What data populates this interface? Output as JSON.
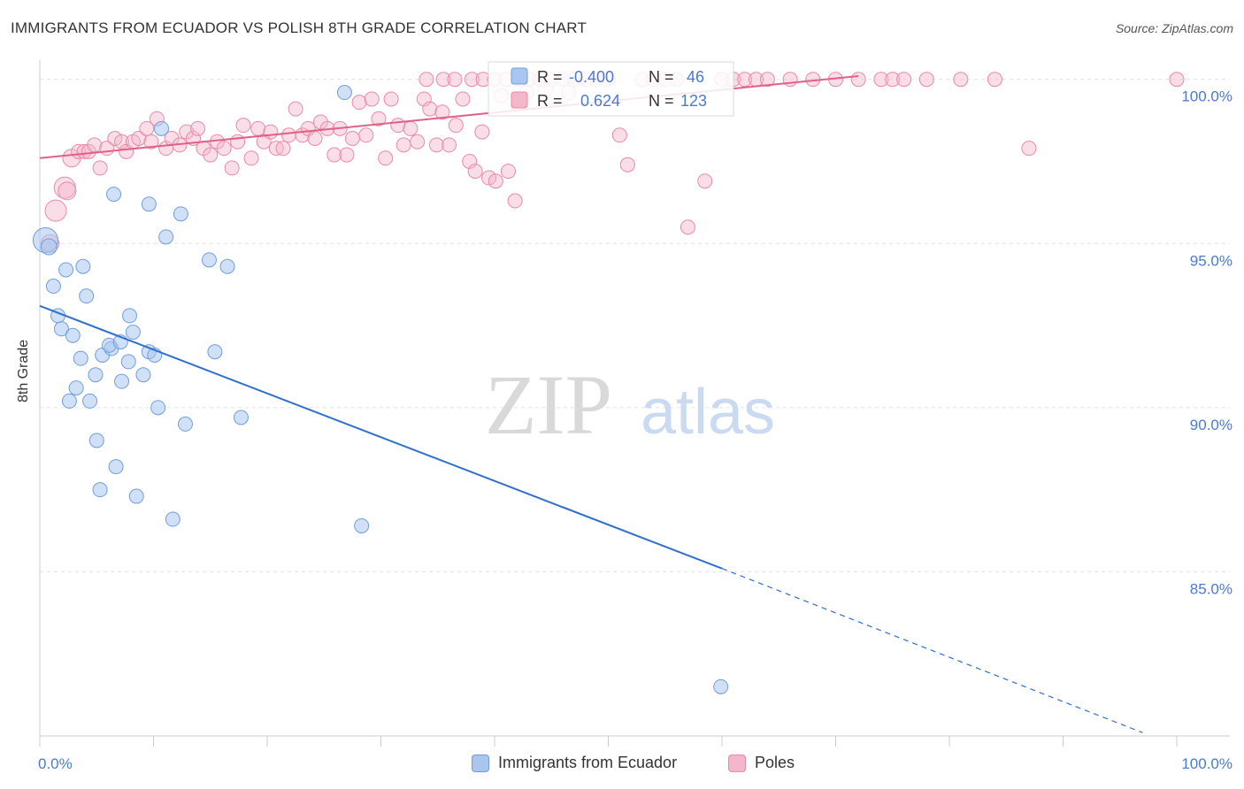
{
  "header": {
    "title": "IMMIGRANTS FROM ECUADOR VS POLISH 8TH GRADE CORRELATION CHART",
    "source": "Source: ZipAtlas.com"
  },
  "watermark": {
    "zip": "ZIP",
    "atlas": "atlas"
  },
  "colors": {
    "blue_fill": "#a9c6ef",
    "blue_stroke": "#6f9ee0",
    "blue_line": "#2f6fd0",
    "pink_fill": "#f4b6c9",
    "pink_stroke": "#e98aa8",
    "pink_line": "#e0608a",
    "tick_text": "#4a7bd0",
    "grid": "#e3e3e3"
  },
  "legend_box": {
    "rows": [
      {
        "r_label": "R =",
        "r_value": "-0.400",
        "n_label": "N =",
        "n_value": "46"
      },
      {
        "r_label": "R =",
        "r_value": "0.624",
        "n_label": "N =",
        "n_value": "123"
      }
    ]
  },
  "chart_data": {
    "type": "scatter",
    "title": "IMMIGRANTS FROM ECUADOR VS POLISH 8TH GRADE CORRELATION CHART",
    "xlabel": "",
    "ylabel": "8th Grade",
    "xlim": [
      0,
      100
    ],
    "ylim": [
      80.0,
      100.8
    ],
    "x_tick_labels": [
      "0.0%",
      "100.0%"
    ],
    "y_ticks": [
      85,
      90,
      95,
      100
    ],
    "y_tick_labels": [
      "85.0%",
      "90.0%",
      "95.0%",
      "100.0%"
    ],
    "grid": true,
    "legend_position": "top-center and bottom",
    "series": [
      {
        "name": "Immigrants from Ecuador",
        "color": "#a9c6ef",
        "r": -0.4,
        "n": 46,
        "trend": {
          "x0": 0,
          "y0": 93.1,
          "x1": 60,
          "y1": 85.1,
          "dashed_to_x": 97,
          "dashed_to_y": 80.1
        },
        "points": [
          [
            0.5,
            95.1,
            14
          ],
          [
            0.8,
            94.9,
            9
          ],
          [
            1.2,
            93.7,
            8
          ],
          [
            2.3,
            94.2,
            8
          ],
          [
            3.8,
            94.3,
            8
          ],
          [
            1.6,
            92.8,
            8
          ],
          [
            1.9,
            92.4,
            8
          ],
          [
            2.9,
            92.2,
            8
          ],
          [
            4.1,
            93.4,
            8
          ],
          [
            7.9,
            92.8,
            8
          ],
          [
            5.5,
            91.6,
            8
          ],
          [
            6.3,
            91.8,
            8
          ],
          [
            6.1,
            91.9,
            8
          ],
          [
            7.1,
            92.0,
            8
          ],
          [
            8.2,
            92.3,
            8
          ],
          [
            3.6,
            91.5,
            8
          ],
          [
            7.8,
            91.4,
            8
          ],
          [
            9.6,
            91.7,
            8
          ],
          [
            10.1,
            91.6,
            8
          ],
          [
            15.4,
            91.7,
            8
          ],
          [
            4.9,
            91.0,
            8
          ],
          [
            7.2,
            90.8,
            8
          ],
          [
            9.1,
            91.0,
            8
          ],
          [
            3.2,
            90.6,
            8
          ],
          [
            2.6,
            90.2,
            8
          ],
          [
            4.4,
            90.2,
            8
          ],
          [
            10.4,
            90.0,
            8
          ],
          [
            12.8,
            89.5,
            8
          ],
          [
            17.7,
            89.7,
            8
          ],
          [
            5.0,
            89.0,
            8
          ],
          [
            6.7,
            88.2,
            8
          ],
          [
            5.3,
            87.5,
            8
          ],
          [
            8.5,
            87.3,
            8
          ],
          [
            11.7,
            86.6,
            8
          ],
          [
            28.3,
            86.4,
            8
          ],
          [
            6.5,
            96.5,
            8
          ],
          [
            9.6,
            96.2,
            8
          ],
          [
            12.4,
            95.9,
            8
          ],
          [
            11.1,
            95.2,
            8
          ],
          [
            14.9,
            94.5,
            8
          ],
          [
            16.5,
            94.3,
            8
          ],
          [
            10.7,
            98.5,
            8
          ],
          [
            26.8,
            99.6,
            8
          ],
          [
            59.9,
            81.5,
            8
          ]
        ]
      },
      {
        "name": "Poles",
        "color": "#f4b6c9",
        "r": 0.624,
        "n": 123,
        "trend": {
          "x0": 0,
          "y0": 97.6,
          "x1": 72,
          "y1": 100.1
        },
        "points": [
          [
            1.4,
            96.0,
            12
          ],
          [
            2.2,
            96.7,
            12
          ],
          [
            2.4,
            96.6,
            10
          ],
          [
            0.9,
            95.0,
            10
          ],
          [
            2.8,
            97.6,
            10
          ],
          [
            3.4,
            97.8,
            8
          ],
          [
            3.9,
            97.8,
            8
          ],
          [
            4.3,
            97.8,
            8
          ],
          [
            4.8,
            98.0,
            8
          ],
          [
            5.3,
            97.3,
            8
          ],
          [
            5.9,
            97.9,
            8
          ],
          [
            6.6,
            98.2,
            8
          ],
          [
            7.2,
            98.1,
            8
          ],
          [
            7.6,
            97.8,
            8
          ],
          [
            8.2,
            98.1,
            8
          ],
          [
            8.7,
            98.2,
            8
          ],
          [
            9.4,
            98.5,
            8
          ],
          [
            9.8,
            98.1,
            8
          ],
          [
            10.3,
            98.8,
            8
          ],
          [
            11.1,
            97.9,
            8
          ],
          [
            11.6,
            98.2,
            8
          ],
          [
            12.3,
            98.0,
            8
          ],
          [
            12.9,
            98.4,
            8
          ],
          [
            13.5,
            98.2,
            8
          ],
          [
            13.9,
            98.5,
            8
          ],
          [
            14.4,
            97.9,
            8
          ],
          [
            15.0,
            97.7,
            8
          ],
          [
            15.6,
            98.1,
            8
          ],
          [
            16.2,
            97.9,
            8
          ],
          [
            16.9,
            97.3,
            8
          ],
          [
            17.4,
            98.1,
            8
          ],
          [
            17.9,
            98.6,
            8
          ],
          [
            18.6,
            97.6,
            8
          ],
          [
            19.2,
            98.5,
            8
          ],
          [
            19.7,
            98.1,
            8
          ],
          [
            20.3,
            98.4,
            8
          ],
          [
            20.8,
            97.9,
            8
          ],
          [
            21.4,
            97.9,
            8
          ],
          [
            21.9,
            98.3,
            8
          ],
          [
            22.5,
            99.1,
            8
          ],
          [
            23.1,
            98.3,
            8
          ],
          [
            23.6,
            98.5,
            8
          ],
          [
            24.2,
            98.2,
            8
          ],
          [
            24.7,
            98.7,
            8
          ],
          [
            25.3,
            98.5,
            8
          ],
          [
            25.9,
            97.7,
            8
          ],
          [
            26.4,
            98.5,
            8
          ],
          [
            27.0,
            97.7,
            8
          ],
          [
            27.5,
            98.2,
            8
          ],
          [
            28.1,
            99.3,
            8
          ],
          [
            28.7,
            98.3,
            8
          ],
          [
            29.2,
            99.4,
            8
          ],
          [
            29.8,
            98.8,
            8
          ],
          [
            30.4,
            97.6,
            8
          ],
          [
            30.9,
            99.4,
            8
          ],
          [
            31.5,
            98.6,
            8
          ],
          [
            32.0,
            98.0,
            8
          ],
          [
            32.6,
            98.5,
            8
          ],
          [
            33.2,
            98.1,
            8
          ],
          [
            33.8,
            99.4,
            8
          ],
          [
            34.3,
            99.1,
            8
          ],
          [
            34.9,
            98.0,
            8
          ],
          [
            35.4,
            99.0,
            8
          ],
          [
            36.0,
            98.0,
            8
          ],
          [
            36.6,
            98.6,
            8
          ],
          [
            37.2,
            99.4,
            8
          ],
          [
            37.8,
            97.5,
            8
          ],
          [
            38.3,
            97.2,
            8
          ],
          [
            38.9,
            98.4,
            8
          ],
          [
            39.5,
            97.0,
            8
          ],
          [
            40.1,
            96.9,
            8
          ],
          [
            40.6,
            99.5,
            8
          ],
          [
            41.2,
            97.2,
            8
          ],
          [
            41.8,
            96.3,
            8
          ],
          [
            42.3,
            100.0,
            8
          ],
          [
            43.0,
            100.0,
            8
          ],
          [
            44.0,
            100.0,
            8
          ],
          [
            45.0,
            100.0,
            8
          ],
          [
            46.0,
            100.0,
            8
          ],
          [
            47.0,
            100.0,
            8
          ],
          [
            48.0,
            100.0,
            8
          ],
          [
            49.0,
            100.0,
            8
          ],
          [
            50.0,
            100.0,
            8
          ],
          [
            51.0,
            98.3,
            8
          ],
          [
            51.7,
            97.4,
            8
          ],
          [
            53.0,
            100.0,
            8
          ],
          [
            54.0,
            100.0,
            8
          ],
          [
            55.0,
            100.0,
            8
          ],
          [
            56.0,
            100.0,
            8
          ],
          [
            57.0,
            95.5,
            8
          ],
          [
            58.5,
            96.9,
            8
          ],
          [
            60.0,
            100.0,
            8
          ],
          [
            61.0,
            100.0,
            8
          ],
          [
            62.0,
            100.0,
            8
          ],
          [
            63.0,
            100.0,
            8
          ],
          [
            64.0,
            100.0,
            8
          ],
          [
            66.0,
            100.0,
            8
          ],
          [
            68.0,
            100.0,
            8
          ],
          [
            70.0,
            100.0,
            8
          ],
          [
            72.0,
            100.0,
            8
          ],
          [
            74.0,
            100.0,
            8
          ],
          [
            75.0,
            100.0,
            8
          ],
          [
            76.0,
            100.0,
            8
          ],
          [
            78.0,
            100.0,
            8
          ],
          [
            81.0,
            100.0,
            8
          ],
          [
            84.0,
            100.0,
            8
          ],
          [
            87.0,
            97.9,
            8
          ],
          [
            100.0,
            100.0,
            8
          ],
          [
            34.0,
            100.0,
            8
          ],
          [
            35.5,
            100.0,
            8
          ],
          [
            36.5,
            100.0,
            8
          ],
          [
            38.0,
            100.0,
            8
          ],
          [
            39.0,
            100.0,
            8
          ],
          [
            40.0,
            100.0,
            8
          ],
          [
            41.0,
            100.0,
            8
          ],
          [
            42.8,
            99.6,
            8
          ],
          [
            44.5,
            99.7,
            8
          ],
          [
            46.5,
            99.6,
            8
          ]
        ]
      }
    ]
  },
  "bottom_legend": {
    "items": [
      {
        "label": "Immigrants from Ecuador"
      },
      {
        "label": "Poles"
      }
    ]
  }
}
